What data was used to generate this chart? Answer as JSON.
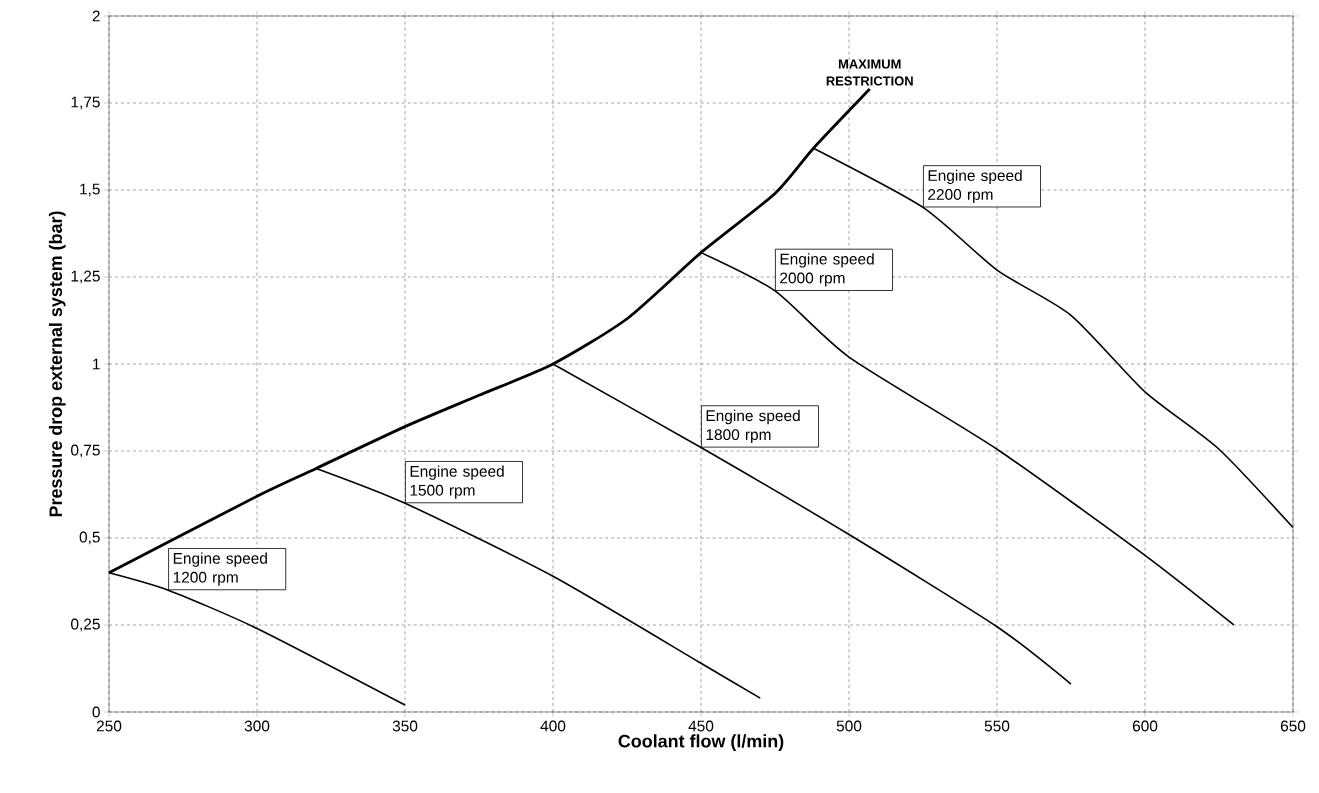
{
  "chart_data": {
    "type": "line",
    "xlabel": "Coolant flow (l/min)",
    "ylabel": "Pressure drop external system (bar)",
    "xlim": [
      250,
      650
    ],
    "ylim": [
      0,
      2
    ],
    "xticks": [
      250,
      300,
      350,
      400,
      450,
      500,
      550,
      600,
      650
    ],
    "yticks": [
      0,
      {
        "value": 0.25,
        "label": "0,25"
      },
      {
        "value": 0.5,
        "label": "0,5"
      },
      {
        "value": 0.75,
        "label": "0,75"
      },
      1,
      {
        "value": 1.25,
        "label": "1,25"
      },
      {
        "value": 1.5,
        "label": "1,5"
      },
      {
        "value": 1.75,
        "label": "1,75"
      },
      2
    ],
    "grid": true,
    "marker": "none",
    "line_style": "solid",
    "series": [
      {
        "name": "MAXIMUM RESTRICTION",
        "color": "#000000",
        "x": [
          250,
          300,
          320,
          350,
          375,
          400,
          425,
          450,
          475,
          488,
          507
        ],
        "values": [
          0.4,
          0.62,
          0.7,
          0.82,
          0.91,
          1.0,
          1.13,
          1.32,
          1.49,
          1.62,
          1.79
        ]
      },
      {
        "name": "Engine speed 1200 rpm",
        "color": "#000000",
        "x": [
          250,
          270,
          300,
          350
        ],
        "values": [
          0.4,
          0.35,
          0.24,
          0.02
        ]
      },
      {
        "name": "Engine speed 1500 rpm",
        "color": "#000000",
        "x": [
          320,
          350,
          400,
          450,
          470
        ],
        "values": [
          0.7,
          0.6,
          0.39,
          0.14,
          0.04
        ]
      },
      {
        "name": "Engine speed 1800 rpm",
        "color": "#000000",
        "x": [
          400,
          450,
          500,
          550,
          575
        ],
        "values": [
          1.0,
          0.76,
          0.51,
          0.245,
          0.08
        ]
      },
      {
        "name": "Engine speed 2000 rpm",
        "color": "#000000",
        "x": [
          450,
          475,
          500,
          550,
          600,
          630
        ],
        "values": [
          1.32,
          1.21,
          1.02,
          0.755,
          0.45,
          0.25
        ]
      },
      {
        "name": "Engine speed 2200 rpm",
        "color": "#000000",
        "x": [
          488,
          525,
          550,
          575,
          600,
          625,
          650
        ],
        "values": [
          1.62,
          1.45,
          1.27,
          1.14,
          0.92,
          0.755,
          0.53
        ]
      }
    ]
  }
}
